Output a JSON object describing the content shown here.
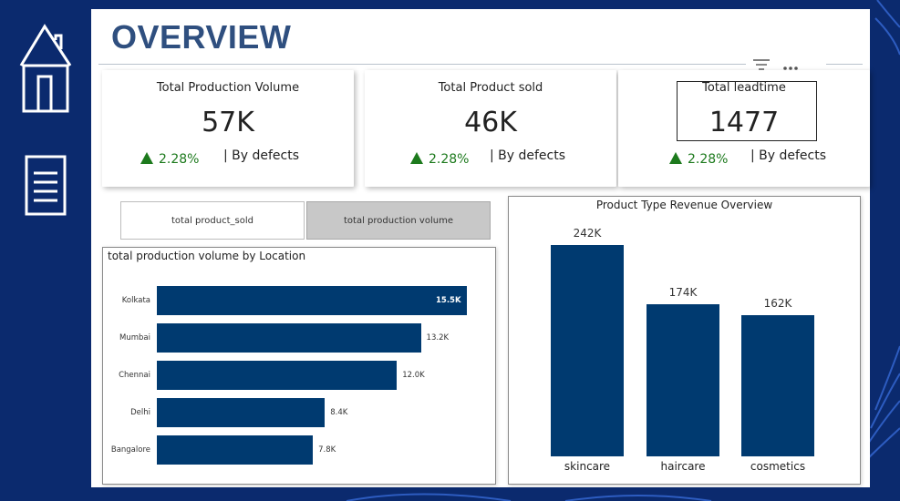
{
  "page": {
    "title": "OVERVIEW"
  },
  "colors": {
    "background": "#0b2a6e",
    "bar": "#003a70",
    "positive": "#1d7a1d"
  },
  "nav": [
    {
      "icon": "home-icon"
    },
    {
      "icon": "document-icon"
    }
  ],
  "header_tools": [
    {
      "icon": "filter-icon"
    },
    {
      "icon": "more-options-icon"
    }
  ],
  "kpis": [
    {
      "label": "Total Production Volume",
      "value": "57K",
      "change": "2.28%",
      "note": "| By defects"
    },
    {
      "label": "Total Product sold",
      "value": "46K",
      "change": "2.28%",
      "note": "| By defects"
    },
    {
      "label": "Total leadtime",
      "value": "1477",
      "change": "2.28%",
      "note": "| By defects"
    }
  ],
  "toggles": {
    "product_sold": "total product_sold",
    "production_volume": "total production volume"
  },
  "chart_data": [
    {
      "type": "bar",
      "orientation": "horizontal",
      "title": "total production volume by Location",
      "categories": [
        "Kolkata",
        "Mumbai",
        "Chennai",
        "Delhi",
        "Bangalore"
      ],
      "values": [
        15.5,
        13.2,
        12.0,
        8.4,
        7.8
      ],
      "labels": [
        "15.5K",
        "13.2K",
        "12.0K",
        "8.4K",
        "7.8K"
      ],
      "xlim": [
        0,
        15.5
      ],
      "grid": false,
      "legend": "none"
    },
    {
      "type": "bar",
      "orientation": "vertical",
      "title": "Product Type Revenue Overview",
      "categories": [
        "skincare",
        "haircare",
        "cosmetics"
      ],
      "values": [
        242,
        174,
        162
      ],
      "labels": [
        "242K",
        "174K",
        "162K"
      ],
      "ylim": [
        0,
        242
      ],
      "grid": false,
      "legend": "none"
    }
  ]
}
